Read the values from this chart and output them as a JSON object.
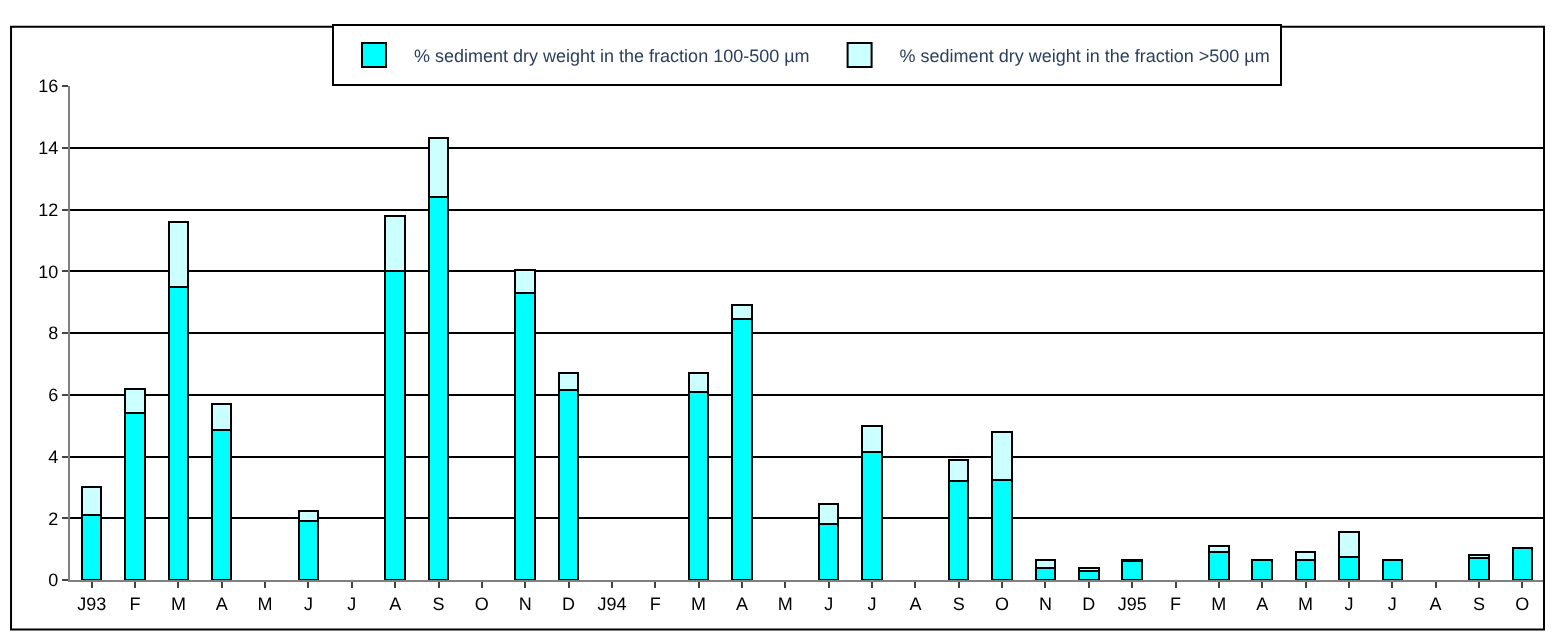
{
  "chart_data": {
    "type": "bar",
    "stacked": true,
    "categories": [
      "J93",
      "F",
      "M",
      "A",
      "M",
      "J",
      "J",
      "A",
      "S",
      "O",
      "N",
      "D",
      "J94",
      "F",
      "M",
      "A",
      "M",
      "J",
      "J",
      "A",
      "S",
      "O",
      "N",
      "D",
      "J95",
      "F",
      "M",
      "A",
      "M",
      "J",
      "J",
      "A",
      "S",
      "O"
    ],
    "series": [
      {
        "name": "% sediment dry weight in the fraction 100-500 µm",
        "color": "#00ffff",
        "values": [
          2.1,
          5.4,
          9.5,
          4.85,
          null,
          1.9,
          null,
          10.0,
          12.4,
          null,
          9.3,
          6.15,
          null,
          null,
          6.1,
          8.45,
          null,
          1.8,
          4.15,
          null,
          3.2,
          3.25,
          0.4,
          0.3,
          0.6,
          null,
          0.9,
          0.65,
          0.65,
          0.75,
          0.65,
          null,
          0.7,
          1.05
        ]
      },
      {
        "name": "% sediment dry weight in the fraction >500 µm",
        "color": "#ccffff",
        "values": [
          0.9,
          0.8,
          2.1,
          0.85,
          null,
          0.35,
          null,
          1.8,
          1.9,
          null,
          0.75,
          0.55,
          null,
          null,
          0.6,
          0.45,
          null,
          0.65,
          0.85,
          null,
          0.7,
          1.55,
          0.25,
          0.1,
          0.05,
          null,
          0.2,
          null,
          0.25,
          0.8,
          null,
          null,
          0.1,
          null
        ]
      }
    ],
    "ylim": [
      0,
      16
    ],
    "yticks": [
      0,
      2,
      4,
      6,
      8,
      10,
      12,
      14,
      16
    ],
    "grid": "y",
    "legend": "top"
  }
}
